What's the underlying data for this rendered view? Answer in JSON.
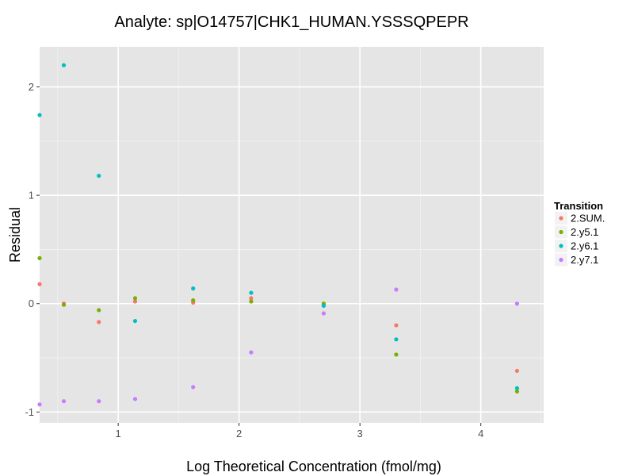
{
  "chart_data": {
    "type": "scatter",
    "title": "Analyte: sp|O14757|CHK1_HUMAN.YSSSQPEPR",
    "xlabel": "Log Theoretical Concentration (fmol/mg)",
    "ylabel": "Residual",
    "xlim": [
      0.35,
      4.52
    ],
    "ylim": [
      -1.1,
      2.37
    ],
    "xticks": [
      1,
      2,
      3,
      4
    ],
    "xtick_labels": [
      "1",
      "2",
      "3",
      "4"
    ],
    "yticks": [
      -1,
      0,
      1,
      2
    ],
    "ytick_labels": [
      "-1",
      "0",
      "1",
      "2"
    ],
    "grid": true,
    "legend": {
      "title": "Transition",
      "position": "right"
    },
    "series": [
      {
        "name": "2.SUM.",
        "color": "#F8766D",
        "x": [
          0.35,
          0.55,
          0.84,
          1.14,
          1.62,
          2.1,
          2.7,
          3.3,
          4.3
        ],
        "y": [
          0.18,
          0.0,
          -0.17,
          0.02,
          0.01,
          0.05,
          -0.01,
          -0.2,
          -0.62
        ]
      },
      {
        "name": "2.y5.1",
        "color": "#7CAE00",
        "x": [
          0.35,
          0.55,
          0.84,
          1.14,
          1.62,
          2.1,
          2.7,
          3.3,
          4.3
        ],
        "y": [
          0.42,
          -0.01,
          -0.06,
          0.05,
          0.03,
          0.02,
          0.0,
          -0.47,
          -0.81
        ]
      },
      {
        "name": "2.y6.1",
        "color": "#00BFC4",
        "x": [
          0.35,
          0.55,
          0.84,
          1.14,
          1.62,
          2.1,
          2.7,
          3.3,
          4.3
        ],
        "y": [
          1.74,
          2.2,
          1.18,
          -0.16,
          0.14,
          0.1,
          -0.02,
          -0.33,
          -0.78
        ]
      },
      {
        "name": "2.y7.1",
        "color": "#C77CFF",
        "x": [
          0.35,
          0.55,
          0.84,
          1.14,
          1.62,
          2.1,
          2.7,
          3.3,
          4.3
        ],
        "y": [
          -0.93,
          -0.9,
          -0.9,
          -0.88,
          -0.77,
          -0.45,
          -0.09,
          0.13,
          0.0
        ]
      }
    ]
  }
}
